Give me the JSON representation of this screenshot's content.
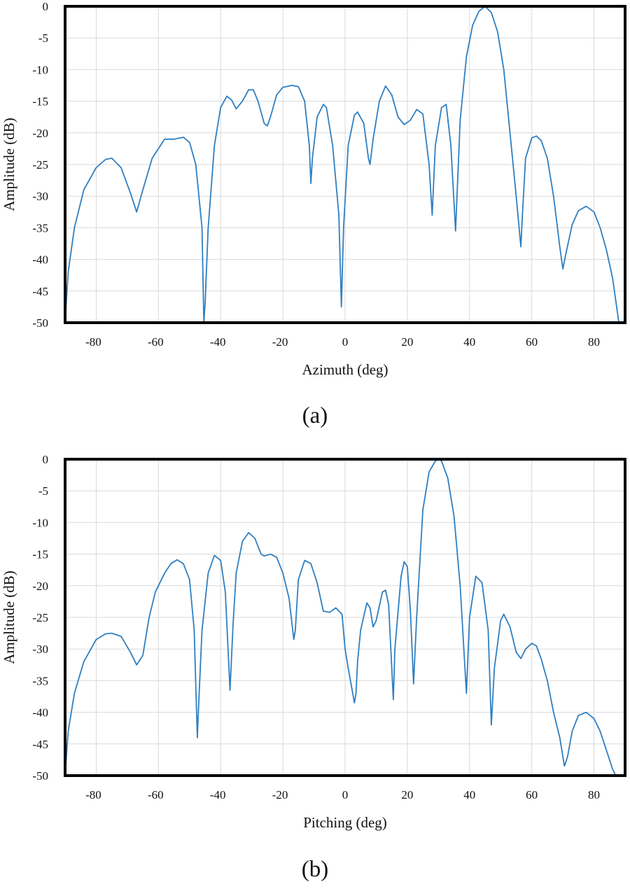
{
  "chart_data": [
    {
      "type": "line",
      "caption": "(a)",
      "xlabel": "Azimuth (deg)",
      "ylabel": "Amplitude (dB)",
      "xlim": [
        -90,
        90
      ],
      "ylim": [
        -50,
        0
      ],
      "xticks": [
        -80,
        -60,
        -40,
        -20,
        0,
        20,
        40,
        60,
        80
      ],
      "yticks": [
        0,
        -5,
        -10,
        -15,
        -20,
        -25,
        -30,
        -35,
        -40,
        -45,
        -50
      ],
      "grid": true,
      "color": "#2f7fc1",
      "series": [
        {
          "x": [
            -90,
            -89,
            -87,
            -84,
            -80,
            -77,
            -75,
            -72,
            -69,
            -67,
            -65,
            -62,
            -58,
            -55,
            -52,
            -50,
            -48,
            -46,
            -45.4,
            -45,
            -44,
            -42,
            -40,
            -38,
            -36.5,
            -35,
            -33,
            -31,
            -29.5,
            -28,
            -26,
            -25,
            -24,
            -22,
            -20,
            -17,
            -15,
            -13,
            -11.5,
            -11,
            -10.5,
            -9,
            -7,
            -6,
            -4,
            -2,
            -1.2,
            -0.5,
            1,
            3,
            4,
            6,
            7.5,
            8,
            9,
            11,
            13,
            15,
            17,
            19,
            21,
            23,
            25,
            27,
            28,
            29,
            31,
            32.5,
            34,
            35.5,
            37,
            39,
            41,
            43,
            45,
            47,
            49,
            51,
            53,
            55,
            56.5,
            57,
            58,
            60,
            61.5,
            63,
            65,
            67,
            69,
            70,
            71,
            73,
            75,
            77.5,
            80,
            82,
            84,
            86,
            88
          ],
          "y": [
            -50,
            -42,
            -35,
            -29,
            -25.5,
            -24.2,
            -24,
            -25.5,
            -29.5,
            -32.5,
            -29,
            -24,
            -21,
            -21,
            -20.7,
            -21.5,
            -25,
            -35,
            -50,
            -47,
            -35,
            -22,
            -16,
            -14.2,
            -14.8,
            -16.2,
            -15,
            -13.2,
            -13.2,
            -15,
            -18.5,
            -18.9,
            -17.5,
            -14,
            -12.8,
            -12.5,
            -12.7,
            -15,
            -22,
            -28,
            -24,
            -17.5,
            -15.5,
            -16,
            -22,
            -33,
            -47.5,
            -35,
            -22,
            -17.2,
            -16.7,
            -18.5,
            -24,
            -25,
            -21,
            -15,
            -12.6,
            -14,
            -17.5,
            -18.7,
            -18,
            -16.3,
            -17,
            -25,
            -33,
            -22,
            -16,
            -15.5,
            -22,
            -35.5,
            -18,
            -8,
            -3,
            -0.8,
            0,
            -1,
            -4,
            -10,
            -20,
            -30,
            -38,
            -33,
            -24,
            -20.8,
            -20.5,
            -21.2,
            -24,
            -30,
            -38,
            -41.5,
            -39,
            -34.5,
            -32.3,
            -31.6,
            -32.5,
            -35,
            -38.5,
            -43,
            -50
          ]
        }
      ]
    },
    {
      "type": "line",
      "caption": "(b)",
      "xlabel": "Pitching (deg)",
      "ylabel": "Amplitude (dB)",
      "xlim": [
        -90,
        90
      ],
      "ylim": [
        -50,
        0
      ],
      "xticks": [
        -80,
        -60,
        -40,
        -20,
        0,
        20,
        40,
        60,
        80
      ],
      "yticks": [
        0,
        -5,
        -10,
        -15,
        -20,
        -25,
        -30,
        -35,
        -40,
        -45,
        -50
      ],
      "grid": true,
      "color": "#2f7fc1",
      "series": [
        {
          "x": [
            -90,
            -89,
            -87,
            -84,
            -80,
            -77,
            -75,
            -72,
            -69,
            -67,
            -65,
            -63,
            -61,
            -58,
            -56,
            -54,
            -52,
            -50,
            -48.5,
            -47.5,
            -47,
            -46,
            -44,
            -42,
            -40,
            -38.5,
            -37,
            -36,
            -35,
            -33,
            -31,
            -29,
            -27,
            -26,
            -24,
            -22,
            -20,
            -18,
            -16.5,
            -16,
            -15,
            -13,
            -11,
            -9,
            -7,
            -5,
            -3,
            -1,
            0,
            1,
            3,
            3.5,
            4,
            5,
            7,
            8,
            9,
            10,
            12,
            13,
            14,
            15.5,
            16,
            18,
            19,
            20,
            21,
            22,
            23,
            25,
            27,
            29,
            30,
            31,
            33,
            35,
            37,
            39,
            40,
            42,
            44,
            46,
            47,
            48,
            50,
            51,
            53,
            55,
            56.5,
            58,
            60,
            61.5,
            63,
            65,
            67,
            69,
            70.5,
            71.5,
            73,
            75,
            77.5,
            80,
            82,
            84,
            86,
            87
          ],
          "y": [
            -50,
            -43,
            -37,
            -32,
            -28.5,
            -27.6,
            -27.5,
            -28,
            -30.5,
            -32.5,
            -31,
            -25,
            -21,
            -18,
            -16.5,
            -15.9,
            -16.5,
            -19,
            -27,
            -44,
            -38,
            -27,
            -18,
            -15.2,
            -16,
            -21,
            -36.5,
            -26,
            -18,
            -13,
            -11.6,
            -12.5,
            -15,
            -15.3,
            -15,
            -15.5,
            -18,
            -22,
            -28.5,
            -27,
            -19,
            -16,
            -16.5,
            -19.5,
            -24,
            -24.2,
            -23.5,
            -24.5,
            -30,
            -33,
            -38.5,
            -37,
            -32,
            -27,
            -22.7,
            -23.5,
            -26.5,
            -25.5,
            -21,
            -20.7,
            -23,
            -38,
            -30,
            -18.5,
            -16.2,
            -17,
            -24,
            -35.5,
            -25,
            -8,
            -2,
            -0.3,
            0,
            -0.3,
            -3,
            -9,
            -20,
            -37,
            -25,
            -18.5,
            -19.5,
            -27,
            -42,
            -33,
            -25.5,
            -24.5,
            -26.5,
            -30.5,
            -31.5,
            -30,
            -29.1,
            -29.5,
            -31.5,
            -35,
            -40,
            -44,
            -48.5,
            -47,
            -43,
            -40.5,
            -40,
            -41,
            -43,
            -46,
            -49,
            -50
          ]
        }
      ]
    }
  ]
}
